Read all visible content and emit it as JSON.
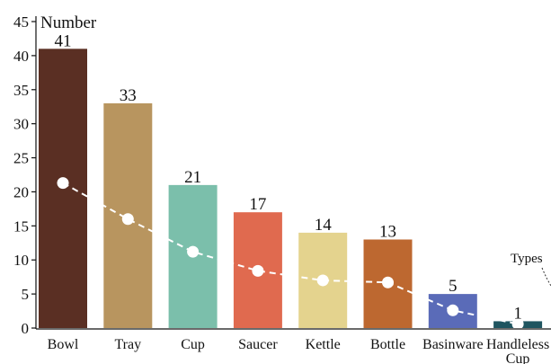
{
  "chart_data": {
    "type": "bar",
    "title": "",
    "ylabel": "Number",
    "xlabel": "",
    "ylim": [
      0,
      45
    ],
    "yticks": [
      0,
      5,
      10,
      15,
      20,
      25,
      30,
      35,
      40,
      45
    ],
    "grid": false,
    "categories": [
      "Bowl",
      "Tray",
      "Cup",
      "Saucer",
      "Kettle",
      "Bottle",
      "Basinware",
      "Handleless Cup"
    ],
    "category_lines": [
      [
        "Bowl"
      ],
      [
        "Tray"
      ],
      [
        "Cup"
      ],
      [
        "Saucer"
      ],
      [
        "Kettle"
      ],
      [
        "Bottle"
      ],
      [
        "Basinware"
      ],
      [
        "Handleless",
        "Cup"
      ]
    ],
    "values": [
      41,
      33,
      21,
      17,
      14,
      13,
      5,
      1
    ],
    "value_labels": [
      "41",
      "33",
      "21",
      "17",
      "14",
      "13",
      "5",
      "1"
    ],
    "bar_colors": [
      "#5a2f23",
      "#b8955f",
      "#7bbfab",
      "#e06a4f",
      "#e4d38e",
      "#bd6830",
      "#5a6bb8",
      "#1f5560"
    ],
    "types_trend": {
      "label": "Types",
      "values": [
        21.3,
        16,
        11.2,
        8.4,
        7,
        6.7,
        2.6,
        0.6
      ],
      "marker_color": "#ffffff",
      "line_style": "dashed"
    }
  }
}
